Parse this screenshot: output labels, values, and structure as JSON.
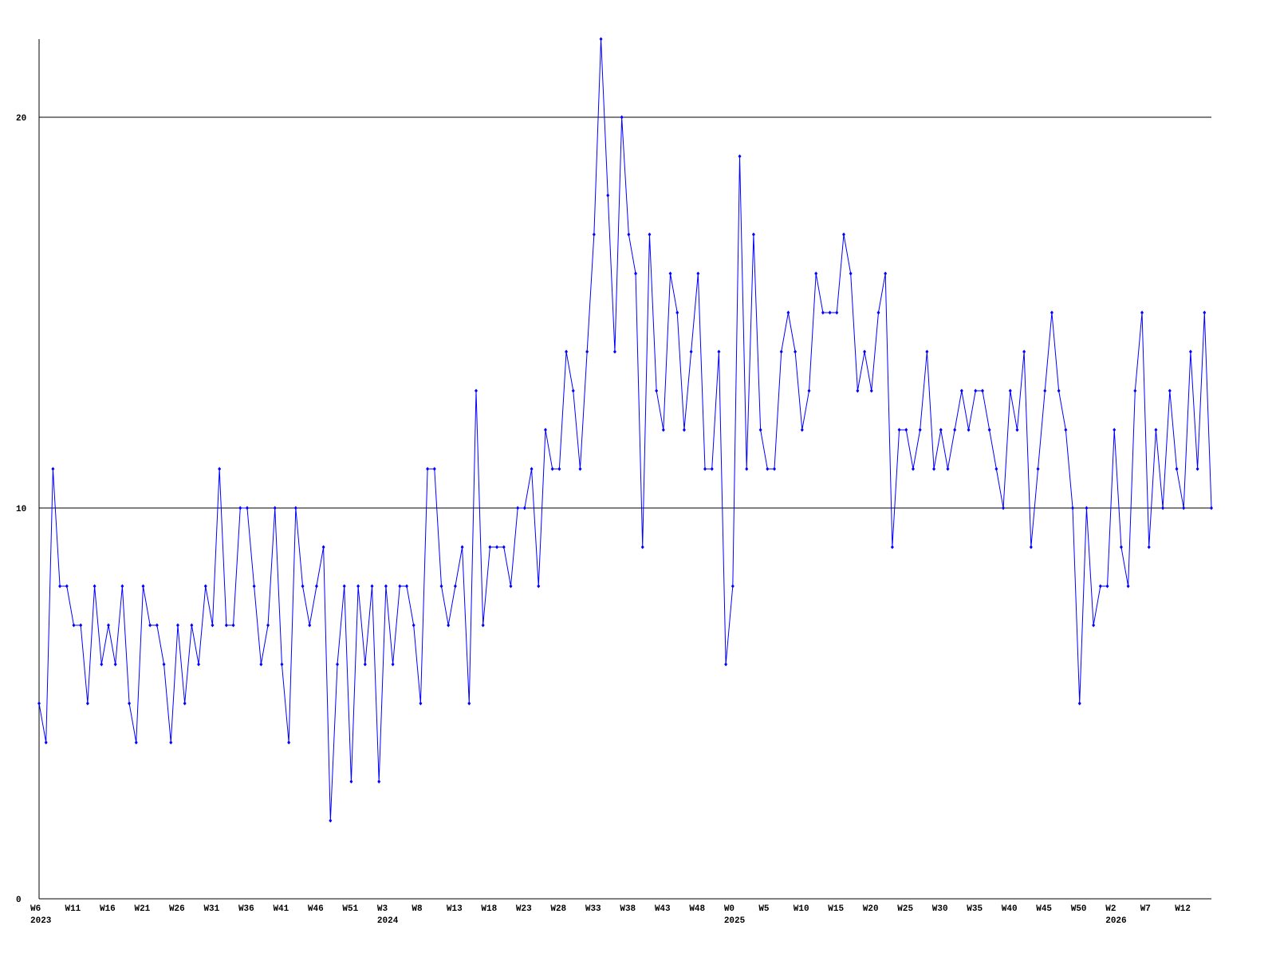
{
  "chart_data": {
    "type": "line",
    "categories": [
      "W6",
      null,
      null,
      null,
      null,
      "W11",
      null,
      null,
      null,
      null,
      "W16",
      null,
      null,
      null,
      null,
      "W21",
      null,
      null,
      null,
      null,
      "W26",
      null,
      null,
      null,
      null,
      "W31",
      null,
      null,
      null,
      null,
      "W36",
      null,
      null,
      null,
      null,
      "W41",
      null,
      null,
      null,
      null,
      "W46",
      null,
      null,
      null,
      null,
      "W51",
      null,
      null,
      null,
      null,
      "W3",
      null,
      null,
      null,
      null,
      "W8",
      null,
      null,
      null,
      null,
      "W13",
      null,
      null,
      null,
      null,
      "W18",
      null,
      null,
      null,
      null,
      "W23",
      null,
      null,
      null,
      null,
      "W28",
      null,
      null,
      null,
      null,
      "W33",
      null,
      null,
      null,
      null,
      "W38",
      null,
      null,
      null,
      null,
      "W43",
      null,
      null,
      null,
      null,
      "W48",
      null,
      null,
      null,
      null,
      "W0",
      null,
      null,
      null,
      null,
      "W5",
      null,
      null,
      null,
      null,
      "W10",
      null,
      null,
      null,
      null,
      "W15",
      null,
      null,
      null,
      null,
      "W20",
      null,
      null,
      null,
      null,
      "W25",
      null,
      null,
      null,
      null,
      "W30",
      null,
      null,
      null,
      null,
      "W35",
      null,
      null,
      null,
      null,
      "W40",
      null,
      null,
      null,
      null,
      "W45",
      null,
      null,
      null,
      null,
      "W50",
      null,
      null,
      null,
      null,
      "W2",
      null,
      null,
      null,
      null,
      "W7",
      null,
      null,
      null,
      null,
      "W12",
      null,
      null,
      null,
      null
    ],
    "years": [
      "2023",
      null,
      null,
      null,
      null,
      null,
      null,
      null,
      null,
      null,
      null,
      null,
      null,
      null,
      null,
      null,
      null,
      null,
      null,
      null,
      null,
      null,
      null,
      null,
      null,
      null,
      null,
      null,
      null,
      null,
      null,
      null,
      null,
      null,
      null,
      null,
      null,
      null,
      null,
      null,
      null,
      null,
      null,
      null,
      null,
      null,
      null,
      null,
      null,
      null,
      "2024",
      null,
      null,
      null,
      null,
      null,
      null,
      null,
      null,
      null,
      null,
      null,
      null,
      null,
      null,
      null,
      null,
      null,
      null,
      null,
      null,
      null,
      null,
      null,
      null,
      null,
      null,
      null,
      null,
      null,
      null,
      null,
      null,
      null,
      null,
      null,
      null,
      null,
      null,
      null,
      null,
      null,
      null,
      null,
      null,
      null,
      null,
      null,
      null,
      null,
      "2025",
      null,
      null,
      null,
      null,
      null,
      null,
      null,
      null,
      null,
      null,
      null,
      null,
      null,
      null,
      null,
      null,
      null,
      null,
      null,
      null,
      null,
      null,
      null,
      null,
      null,
      null,
      null,
      null,
      null,
      null,
      null,
      null,
      null,
      null,
      null,
      null,
      null,
      null,
      null,
      null,
      null,
      null,
      null,
      null,
      null,
      null,
      null,
      null,
      null,
      null,
      null,
      null,
      null,
      null,
      "2026",
      null,
      null,
      null,
      null,
      null,
      null,
      null,
      null,
      null,
      null,
      null,
      null,
      null,
      null
    ],
    "values": [
      5,
      4,
      11,
      8,
      8,
      7,
      7,
      5,
      8,
      6,
      7,
      6,
      8,
      5,
      4,
      8,
      7,
      7,
      6,
      4,
      7,
      5,
      7,
      6,
      8,
      7,
      11,
      7,
      7,
      10,
      10,
      8,
      6,
      7,
      10,
      6,
      4,
      10,
      8,
      7,
      8,
      9,
      2,
      6,
      8,
      3,
      8,
      6,
      8,
      3,
      8,
      6,
      8,
      8,
      7,
      5,
      11,
      11,
      8,
      7,
      8,
      9,
      5,
      13,
      7,
      9,
      9,
      9,
      8,
      10,
      10,
      11,
      8,
      12,
      11,
      11,
      14,
      13,
      11,
      14,
      17,
      22,
      18,
      14,
      20,
      17,
      16,
      9,
      17,
      13,
      12,
      16,
      15,
      12,
      14,
      16,
      11,
      11,
      14,
      6,
      8,
      19,
      11,
      17,
      12,
      11,
      11,
      14,
      15,
      14,
      12,
      13,
      16,
      15,
      15,
      15,
      17,
      16,
      13,
      14,
      13,
      15,
      16,
      9,
      12,
      12,
      11,
      12,
      14,
      11,
      12,
      11,
      12,
      13,
      12,
      13,
      13,
      12,
      11,
      10,
      13,
      12,
      14,
      9,
      11,
      13,
      15,
      13,
      12,
      10,
      5,
      10,
      7,
      8,
      8,
      12,
      9,
      8,
      13,
      15,
      9,
      12,
      10,
      13,
      11,
      10,
      14,
      11,
      15,
      10
    ],
    "color": "#0000ff",
    "ylim": [
      0,
      22
    ],
    "yticks": [
      0,
      10,
      20
    ],
    "grid": true
  }
}
